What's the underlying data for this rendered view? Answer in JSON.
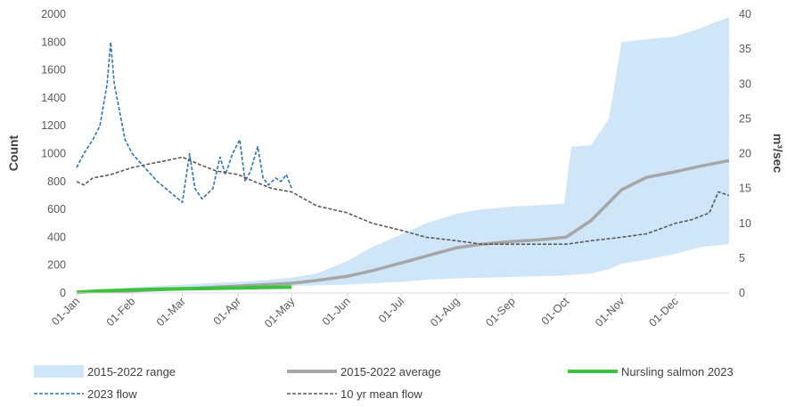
{
  "chart_data": {
    "type": "line",
    "xlabel": "",
    "ylabel_left": "Count",
    "ylabel_right": "m³/sec",
    "x_ticks": [
      "01-Jan",
      "01-Feb",
      "01-Mar",
      "01-Apr",
      "01-May",
      "01-Jun",
      "01-Jul",
      "01-Aug",
      "01-Sep",
      "01-Oct",
      "01-Nov",
      "01-Dec"
    ],
    "ylim_left": [
      0,
      2000
    ],
    "yticks_left": [
      "0",
      "200",
      "400",
      "600",
      "800",
      "1000",
      "1200",
      "1400",
      "1600",
      "1800",
      "2000"
    ],
    "ylim_right": [
      0,
      40
    ],
    "yticks_right": [
      "0",
      "5",
      "10",
      "15",
      "20",
      "25",
      "30",
      "35",
      "40"
    ],
    "grid": false,
    "legend_position": "bottom",
    "colors": {
      "range": "#cfe6f8",
      "average": "#a6a6a6",
      "salmon": "#3cc23c",
      "flow2023": "#2e75b6",
      "meanflow": "#595959"
    },
    "series": [
      {
        "name": "2015-2022 range",
        "axis": "left",
        "kind": "band",
        "x": [
          "01-Jan",
          "15-Jan",
          "01-Feb",
          "15-Feb",
          "01-Mar",
          "15-Mar",
          "01-Apr",
          "15-Apr",
          "01-May",
          "15-May",
          "01-Jun",
          "15-Jun",
          "01-Jul",
          "15-Jul",
          "01-Aug",
          "15-Aug",
          "01-Sep",
          "15-Sep",
          "30-Sep",
          "04-Oct",
          "15-Oct",
          "25-Oct",
          "01-Nov",
          "15-Nov",
          "01-Dec",
          "15-Dec",
          "31-Dec"
        ],
        "lower": [
          0,
          5,
          10,
          15,
          20,
          25,
          30,
          40,
          50,
          55,
          60,
          70,
          80,
          95,
          105,
          110,
          115,
          120,
          125,
          130,
          140,
          170,
          210,
          240,
          280,
          330,
          350
        ],
        "upper": [
          0,
          20,
          40,
          50,
          60,
          70,
          80,
          90,
          110,
          140,
          230,
          330,
          420,
          500,
          570,
          600,
          620,
          630,
          640,
          1050,
          1060,
          1250,
          1800,
          1820,
          1840,
          1900,
          1980
        ]
      },
      {
        "name": "2015-2022 average",
        "axis": "left",
        "x": [
          "01-Jan",
          "01-Feb",
          "01-Mar",
          "01-Apr",
          "01-May",
          "15-May",
          "01-Jun",
          "15-Jun",
          "01-Jul",
          "15-Jul",
          "01-Aug",
          "15-Aug",
          "01-Sep",
          "15-Sep",
          "01-Oct",
          "15-Oct",
          "01-Nov",
          "15-Nov",
          "01-Dec",
          "15-Dec",
          "31-Dec"
        ],
        "values": [
          5,
          15,
          30,
          50,
          70,
          90,
          120,
          160,
          215,
          265,
          325,
          350,
          370,
          380,
          400,
          520,
          740,
          830,
          870,
          910,
          950
        ]
      },
      {
        "name": "Nursling salmon 2023",
        "axis": "left",
        "x": [
          "01-Jan",
          "15-Jan",
          "01-Feb",
          "15-Feb",
          "01-Mar",
          "15-Mar",
          "01-Apr",
          "15-Apr",
          "01-May"
        ],
        "values": [
          5,
          15,
          22,
          27,
          30,
          33,
          36,
          40,
          42
        ]
      },
      {
        "name": "2023 flow",
        "axis": "right",
        "x": [
          "01-Jan",
          "05-Jan",
          "10-Jan",
          "14-Jan",
          "18-Jan",
          "20-Jan",
          "22-Jan",
          "25-Jan",
          "28-Jan",
          "01-Feb",
          "08-Feb",
          "15-Feb",
          "22-Feb",
          "01-Mar",
          "05-Mar",
          "08-Mar",
          "12-Mar",
          "18-Mar",
          "22-Mar",
          "25-Mar",
          "29-Mar",
          "02-Apr",
          "05-Apr",
          "08-Apr",
          "12-Apr",
          "15-Apr",
          "18-Apr",
          "22-Apr",
          "25-Apr",
          "28-Apr",
          "01-May"
        ],
        "values": [
          18,
          20,
          22,
          24,
          30,
          36,
          30,
          26,
          22,
          20,
          18,
          16,
          14.5,
          13,
          20,
          15,
          13.5,
          15,
          19.5,
          17,
          20,
          22,
          16,
          17.5,
          21,
          16.5,
          15.5,
          16.5,
          16,
          17,
          15
        ]
      },
      {
        "name": "10 yr mean flow",
        "axis": "right",
        "x": [
          "01-Jan",
          "05-Jan",
          "10-Jan",
          "20-Jan",
          "01-Feb",
          "10-Feb",
          "20-Feb",
          "01-Mar",
          "10-Mar",
          "20-Mar",
          "01-Apr",
          "10-Apr",
          "20-Apr",
          "01-May",
          "15-May",
          "01-Jun",
          "15-Jun",
          "01-Jul",
          "15-Jul",
          "01-Aug",
          "15-Aug",
          "01-Sep",
          "15-Sep",
          "01-Oct",
          "15-Oct",
          "01-Nov",
          "15-Nov",
          "01-Dec",
          "10-Dec",
          "20-Dec",
          "25-Dec",
          "31-Dec"
        ],
        "values": [
          16,
          15.5,
          16.5,
          17,
          18,
          18.5,
          19,
          19.5,
          18.5,
          17.5,
          17,
          16,
          15,
          14.5,
          12.5,
          11.5,
          10,
          9,
          8,
          7.5,
          7,
          7,
          7,
          7,
          7.5,
          8,
          8.5,
          10,
          10.5,
          11.5,
          14.5,
          14
        ]
      }
    ]
  }
}
